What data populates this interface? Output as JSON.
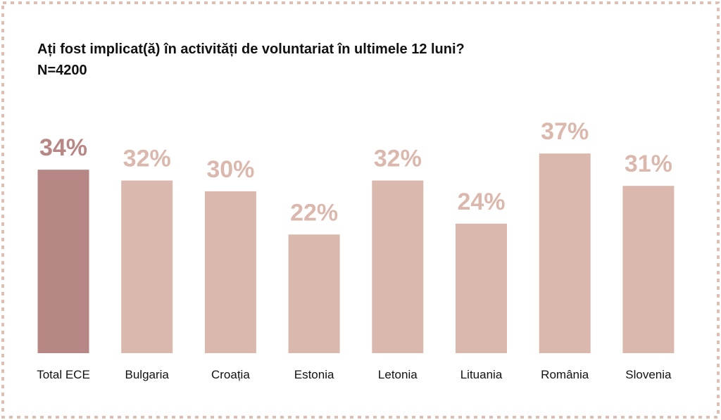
{
  "colors": {
    "background": "#ffffff",
    "border": "#ddbfb4",
    "highlight_bar": "#b78785",
    "highlight_label": "#b78785",
    "bar": "#dbb8ad",
    "bar_label": "#dbb8ad",
    "text": "#111111"
  },
  "chart_data": {
    "type": "bar",
    "title": "Ați fost implicat(ă) în activități de voluntariat în ultimele 12 luni?",
    "subtitle": "N=4200",
    "categories": [
      "Total ECE",
      "Bulgaria",
      "Croația",
      "Estonia",
      "Letonia",
      "Lituania",
      "România",
      "Slovenia"
    ],
    "values": [
      34,
      32,
      30,
      22,
      32,
      24,
      37,
      31
    ],
    "value_labels": [
      "34%",
      "32%",
      "30%",
      "22%",
      "32%",
      "24%",
      "37%",
      "31%"
    ],
    "highlight_index": 0,
    "ylim": [
      0,
      100
    ],
    "grid": false,
    "legend": "none"
  }
}
